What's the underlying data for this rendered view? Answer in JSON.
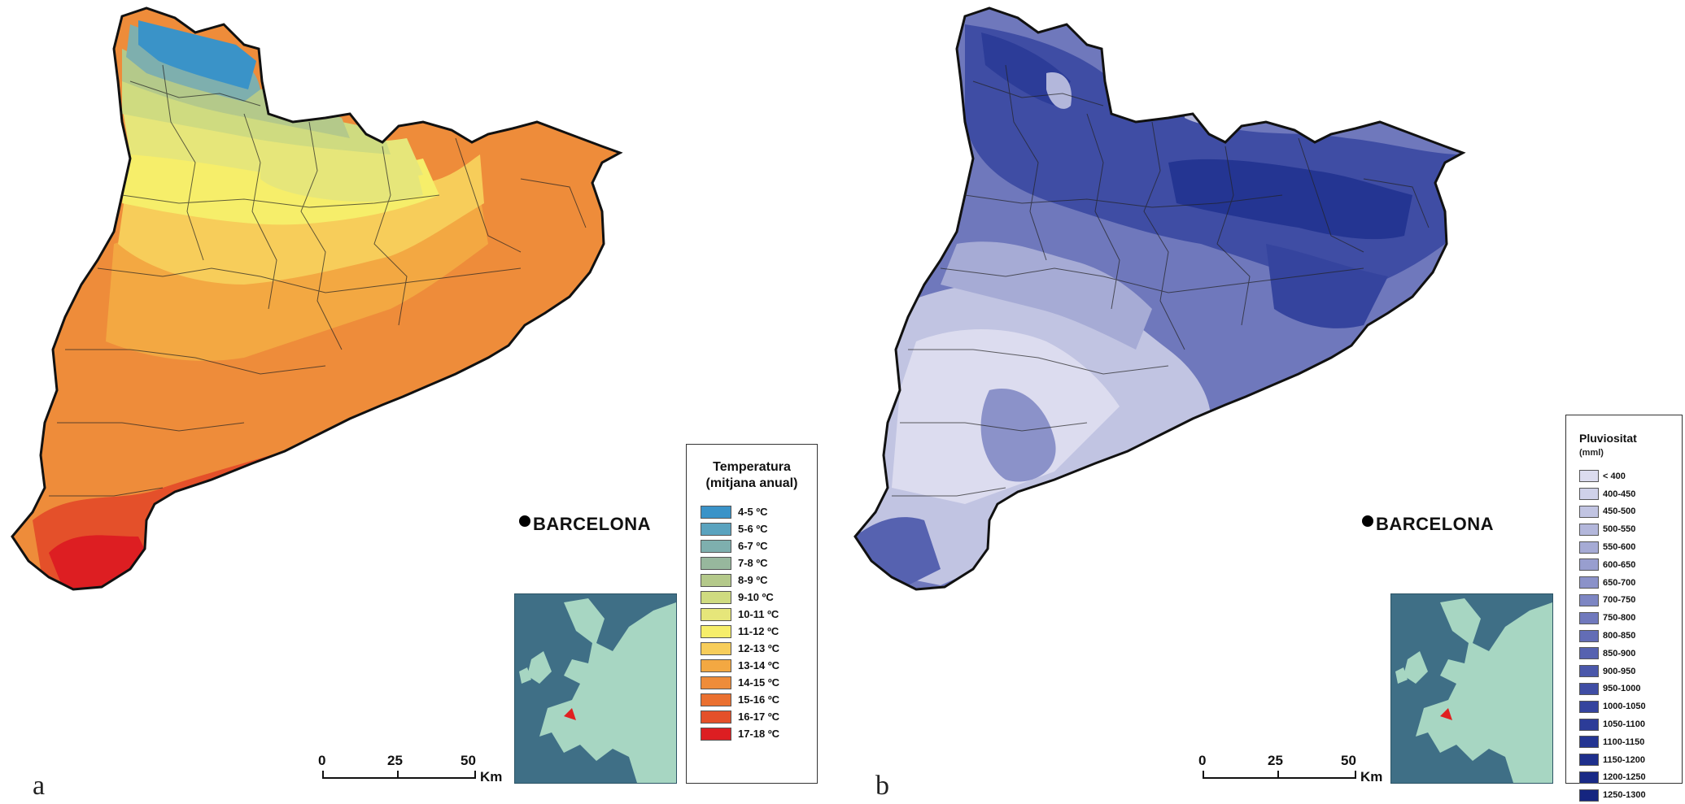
{
  "panel_a": {
    "letter": "a",
    "city": "BARCELONA",
    "legend": {
      "title_line1": "Temperatura",
      "title_line2": "(mitjana anual)",
      "items": [
        {
          "label": "4-5 ºC",
          "color": "#3a93c8"
        },
        {
          "label": "5-6 ºC",
          "color": "#5aa3bf"
        },
        {
          "label": "6-7 ºC",
          "color": "#7eafae"
        },
        {
          "label": "7-8 ºC",
          "color": "#97b79d"
        },
        {
          "label": "8-9 ºC",
          "color": "#b4c98a"
        },
        {
          "label": "9-10 ºC",
          "color": "#cfdb80"
        },
        {
          "label": "10-11 ºC",
          "color": "#e6e67a"
        },
        {
          "label": "11-12 ºC",
          "color": "#f6ee6a"
        },
        {
          "label": "12-13 ºC",
          "color": "#f7cd5a"
        },
        {
          "label": "13-14 ºC",
          "color": "#f3a842"
        },
        {
          "label": "14-15 ºC",
          "color": "#ee8c3a"
        },
        {
          "label": "15-16 ºC",
          "color": "#ea7030"
        },
        {
          "label": "16-17 ºC",
          "color": "#e4502a"
        },
        {
          "label": "17-18 ºC",
          "color": "#dd1e22"
        }
      ]
    },
    "scale": {
      "ticks": [
        "0",
        "25",
        "50"
      ],
      "unit": "Km"
    }
  },
  "panel_b": {
    "letter": "b",
    "city": "BARCELONA",
    "legend": {
      "title": "Pluviositat",
      "subtitle": "(mml)",
      "items": [
        {
          "label": "< 400",
          "color": "#dcdcef"
        },
        {
          "label": "400-450",
          "color": "#cfd1e9"
        },
        {
          "label": "450-500",
          "color": "#c1c4e2"
        },
        {
          "label": "500-550",
          "color": "#b3b7db"
        },
        {
          "label": "550-600",
          "color": "#a6abd5"
        },
        {
          "label": "600-650",
          "color": "#989ecf"
        },
        {
          "label": "650-700",
          "color": "#8b92c9"
        },
        {
          "label": "700-750",
          "color": "#7d86c3"
        },
        {
          "label": "750-800",
          "color": "#7079bd"
        },
        {
          "label": "800-850",
          "color": "#636db6"
        },
        {
          "label": "850-900",
          "color": "#5662b0"
        },
        {
          "label": "900-950",
          "color": "#4a57aa"
        },
        {
          "label": "950-1000",
          "color": "#3f4da4"
        },
        {
          "label": "1000-1050",
          "color": "#35449e"
        },
        {
          "label": "1050-1100",
          "color": "#2c3c98"
        },
        {
          "label": "1100-1150",
          "color": "#243592"
        },
        {
          "label": "1150-1200",
          "color": "#1e2f8c"
        },
        {
          "label": "1200-1250",
          "color": "#192a86"
        },
        {
          "label": "1250-1300",
          "color": "#152580"
        }
      ]
    },
    "scale": {
      "ticks": [
        "0",
        "25",
        "50"
      ],
      "unit": "Km"
    }
  },
  "colors": {
    "inset_sea": "#3f6f86",
    "inset_land": "#a7d6c2",
    "inset_highlight": "#e02020"
  }
}
